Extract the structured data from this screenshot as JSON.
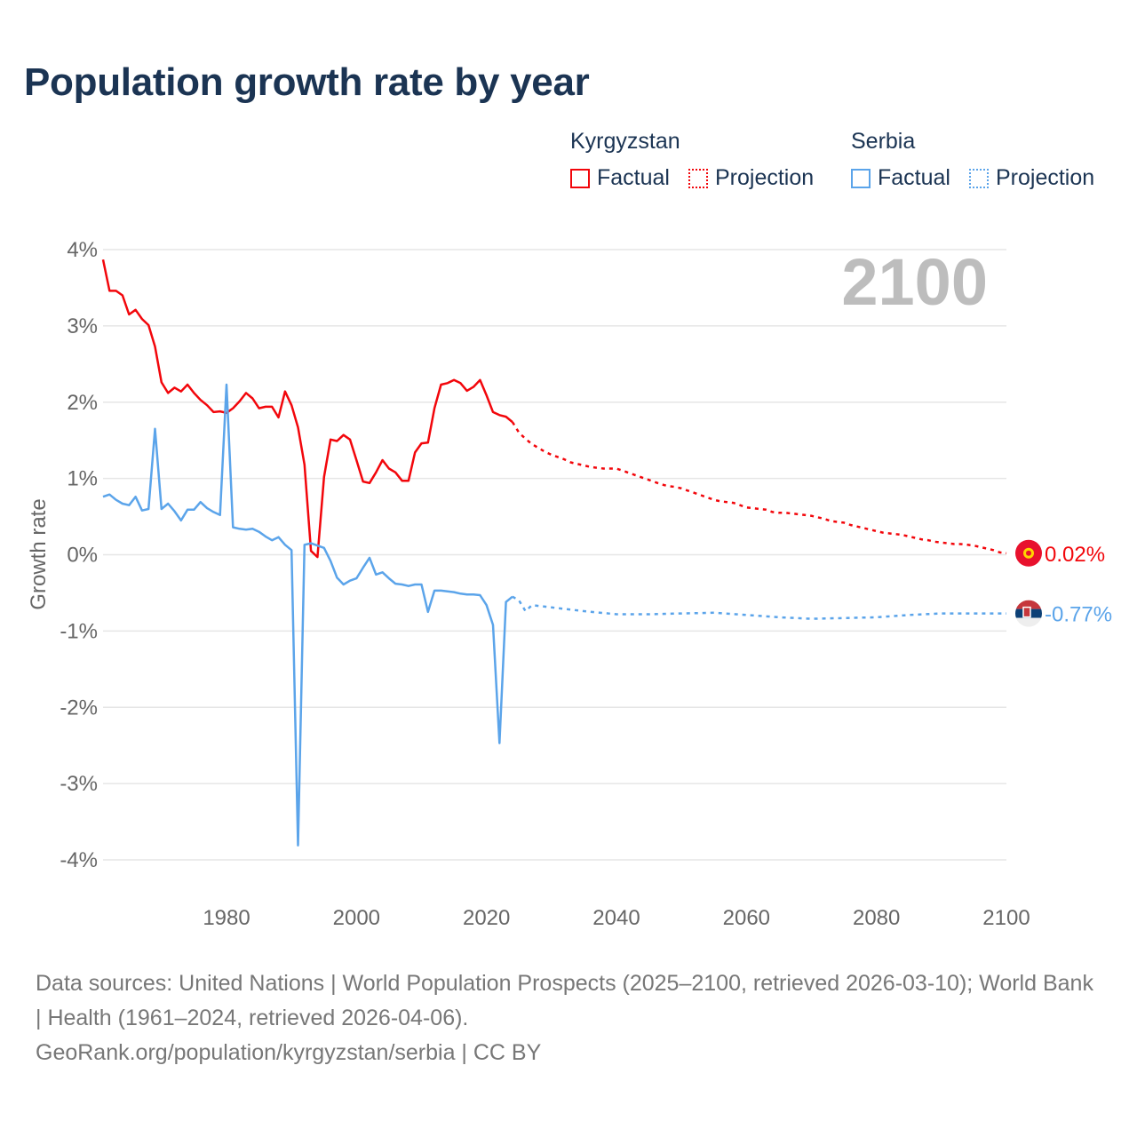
{
  "title": "Population growth rate by year",
  "legend": {
    "groups": [
      {
        "country": "Kyrgyzstan",
        "factual": "Factual",
        "projection": "Projection",
        "color": "#f2060b"
      },
      {
        "country": "Serbia",
        "factual": "Factual",
        "projection": "Projection",
        "color": "#5ba4ea"
      }
    ]
  },
  "footer": {
    "sources": "Data sources: United Nations | World Population Prospects (2025–2100, retrieved 2026-03-10); World Bank | Health (1961–2024, retrieved 2026-04-06).",
    "credit": "GeoRank.org/population/kyrgyzstan/serbia | CC BY"
  },
  "chart_data": {
    "type": "line",
    "title": "Population growth rate by year",
    "year_label": "2100",
    "xlabel": "",
    "ylabel": "Growth rate",
    "xlim": [
      1961,
      2100
    ],
    "ylim": [
      -4,
      4
    ],
    "xticks": [
      1980,
      2000,
      2020,
      2040,
      2060,
      2080,
      2100
    ],
    "yticks": [
      4,
      3,
      2,
      1,
      0,
      -1,
      -2,
      -3,
      -4
    ],
    "ytick_labels": [
      "4%",
      "3%",
      "2%",
      "1%",
      "0%",
      "-1%",
      "-2%",
      "-3%",
      "-4%"
    ],
    "grid": true,
    "legend_position": "top-right",
    "series": [
      {
        "name": "Kyrgyzstan Factual",
        "color": "#f2060b",
        "style": "solid",
        "x_start": 1961,
        "values": [
          3.87,
          3.46,
          3.46,
          3.4,
          3.15,
          3.21,
          3.09,
          3.01,
          2.73,
          2.26,
          2.12,
          2.19,
          2.14,
          2.23,
          2.12,
          2.03,
          1.96,
          1.87,
          1.88,
          1.86,
          1.92,
          2.01,
          2.12,
          2.05,
          1.92,
          1.94,
          1.94,
          1.8,
          2.14,
          1.96,
          1.67,
          1.18,
          0.05,
          -0.03,
          1.02,
          1.51,
          1.49,
          1.57,
          1.51,
          1.24,
          0.96,
          0.94,
          1.08,
          1.24,
          1.13,
          1.08,
          0.97,
          0.97,
          1.34,
          1.46,
          1.47,
          1.92,
          2.23,
          2.25,
          2.29,
          2.25,
          2.15,
          2.2,
          2.29,
          2.09,
          1.87,
          1.83,
          1.81,
          1.74
        ]
      },
      {
        "name": "Kyrgyzstan Projection",
        "color": "#f2060b",
        "style": "dotted",
        "x_start": 2024,
        "values": [
          1.74,
          1.6,
          1.52,
          1.45,
          1.4,
          1.35,
          1.31,
          1.28,
          1.25,
          1.21,
          1.19,
          1.17,
          1.15,
          1.14,
          1.13,
          1.13,
          1.13,
          1.1,
          1.07,
          1.04,
          1.01,
          0.98,
          0.95,
          0.92,
          0.9,
          0.89,
          0.87,
          0.84,
          0.81,
          0.78,
          0.75,
          0.72,
          0.7,
          0.69,
          0.68,
          0.65,
          0.62,
          0.61,
          0.6,
          0.59,
          0.56,
          0.55,
          0.55,
          0.54,
          0.53,
          0.52,
          0.51,
          0.49,
          0.47,
          0.44,
          0.43,
          0.42,
          0.39,
          0.37,
          0.35,
          0.33,
          0.31,
          0.29,
          0.28,
          0.27,
          0.26,
          0.24,
          0.22,
          0.2,
          0.19,
          0.17,
          0.16,
          0.15,
          0.14,
          0.14,
          0.13,
          0.12,
          0.1,
          0.08,
          0.06,
          0.03,
          0.02
        ]
      },
      {
        "name": "Serbia Factual",
        "color": "#5ba4ea",
        "style": "solid",
        "x_start": 1961,
        "values": [
          0.76,
          0.79,
          0.72,
          0.67,
          0.65,
          0.76,
          0.58,
          0.6,
          1.65,
          0.6,
          0.67,
          0.57,
          0.45,
          0.59,
          0.59,
          0.69,
          0.61,
          0.56,
          0.52,
          2.23,
          0.36,
          0.34,
          0.33,
          0.34,
          0.3,
          0.24,
          0.19,
          0.23,
          0.13,
          0.06,
          -3.81,
          0.13,
          0.15,
          0.12,
          0.09,
          -0.08,
          -0.3,
          -0.39,
          -0.34,
          -0.31,
          -0.17,
          -0.04,
          -0.26,
          -0.23,
          -0.31,
          -0.38,
          -0.39,
          -0.41,
          -0.39,
          -0.39,
          -0.75,
          -0.47,
          -0.47,
          -0.48,
          -0.49,
          -0.51,
          -0.52,
          -0.52,
          -0.53,
          -0.66,
          -0.92,
          -2.47,
          -0.62,
          -0.55
        ]
      },
      {
        "name": "Serbia Projection",
        "color": "#5ba4ea",
        "style": "dotted",
        "x": [
          2024,
          2025,
          2026,
          2027,
          2030,
          2035,
          2040,
          2045,
          2050,
          2055,
          2060,
          2065,
          2070,
          2075,
          2080,
          2085,
          2090,
          2095,
          2100
        ],
        "values": [
          -0.55,
          -0.6,
          -0.74,
          -0.66,
          -0.69,
          -0.74,
          -0.78,
          -0.78,
          -0.77,
          -0.76,
          -0.79,
          -0.82,
          -0.84,
          -0.83,
          -0.82,
          -0.79,
          -0.77,
          -0.77,
          -0.77
        ]
      }
    ],
    "end_labels": [
      {
        "country": "Kyrgyzstan",
        "value": 0.02,
        "label": "0.02%",
        "color": "#f2060b",
        "flag": "kyrgyzstan-flag"
      },
      {
        "country": "Serbia",
        "value": -0.77,
        "label": "-0.77%",
        "color": "#5ba4ea",
        "flag": "serbia-flag"
      }
    ]
  }
}
